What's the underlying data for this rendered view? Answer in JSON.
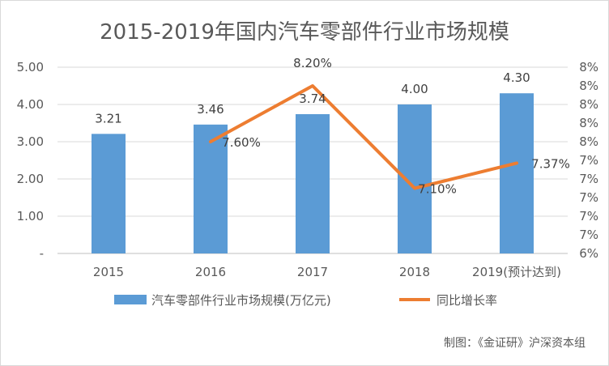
{
  "chart_data": {
    "type": "bar",
    "title": "2015-2019年国内汽车零部件行业市场规模",
    "categories": [
      "2015",
      "2016",
      "2017",
      "2018",
      "2019(预计达到)"
    ],
    "series": [
      {
        "name": "汽车零部件行业市场规模(万亿元)",
        "type": "bar",
        "axis": "left",
        "values": [
          3.21,
          3.46,
          3.74,
          4.0,
          4.3
        ],
        "labels": [
          "3.21",
          "3.46",
          "3.74",
          "4.00",
          "4.30"
        ],
        "color": "#5b9bd5"
      },
      {
        "name": "同比增长率",
        "type": "line",
        "axis": "right",
        "values": [
          null,
          7.6,
          8.2,
          7.1,
          7.37
        ],
        "labels": [
          "",
          "7.60%",
          "8.20%",
          "7.10%",
          "7.37%"
        ],
        "color": "#ed7d31"
      }
    ],
    "y_left": {
      "min": 0,
      "max": 5,
      "ticks": [
        0,
        1,
        2,
        3,
        4,
        5
      ],
      "tick_labels": [
        "-",
        "1.00",
        "2.00",
        "3.00",
        "4.00",
        "5.00"
      ]
    },
    "y_right": {
      "min": 6.4,
      "max": 8.4,
      "ticks": [
        6.4,
        6.6,
        6.8,
        7.0,
        7.2,
        7.4,
        7.6,
        7.8,
        8.0,
        8.2,
        8.4
      ],
      "tick_labels": [
        "6%",
        "7%",
        "7%",
        "7%",
        "7%",
        "7%",
        "8%",
        "8%",
        "8%",
        "8%",
        "8%"
      ]
    },
    "grid": true,
    "legend": "bottom"
  },
  "source_note": "制图：《金证研》沪深资本组"
}
